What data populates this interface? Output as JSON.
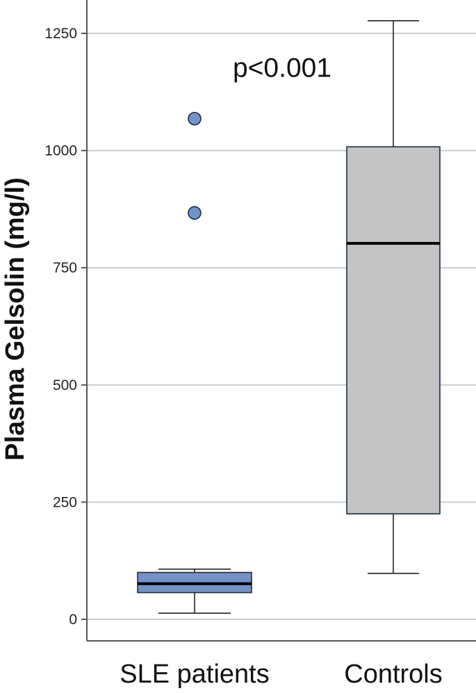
{
  "chart_data": {
    "type": "box",
    "ylabel": "Plasma Gelsolin (mg/l)",
    "xlabel": "",
    "ylim": [
      -40,
      1320
    ],
    "yticks": [
      0,
      250,
      500,
      750,
      1000,
      1250
    ],
    "grid": true,
    "categories": [
      "SLE patients",
      "Controls"
    ],
    "boxes": [
      {
        "name": "SLE patients",
        "min": 13,
        "q1": 57,
        "median": 76,
        "q3": 100,
        "max": 107,
        "outliers": [
          867,
          1068
        ],
        "color": "#7393c4"
      },
      {
        "name": "Controls",
        "min": 98,
        "q1": 225,
        "median": 802,
        "q3": 1008,
        "max": 1277,
        "outliers": [],
        "color": "#c4c4c4"
      }
    ],
    "annotations": [
      {
        "text": "p<0.001",
        "x": "SLE patients",
        "y": 1175
      }
    ]
  }
}
